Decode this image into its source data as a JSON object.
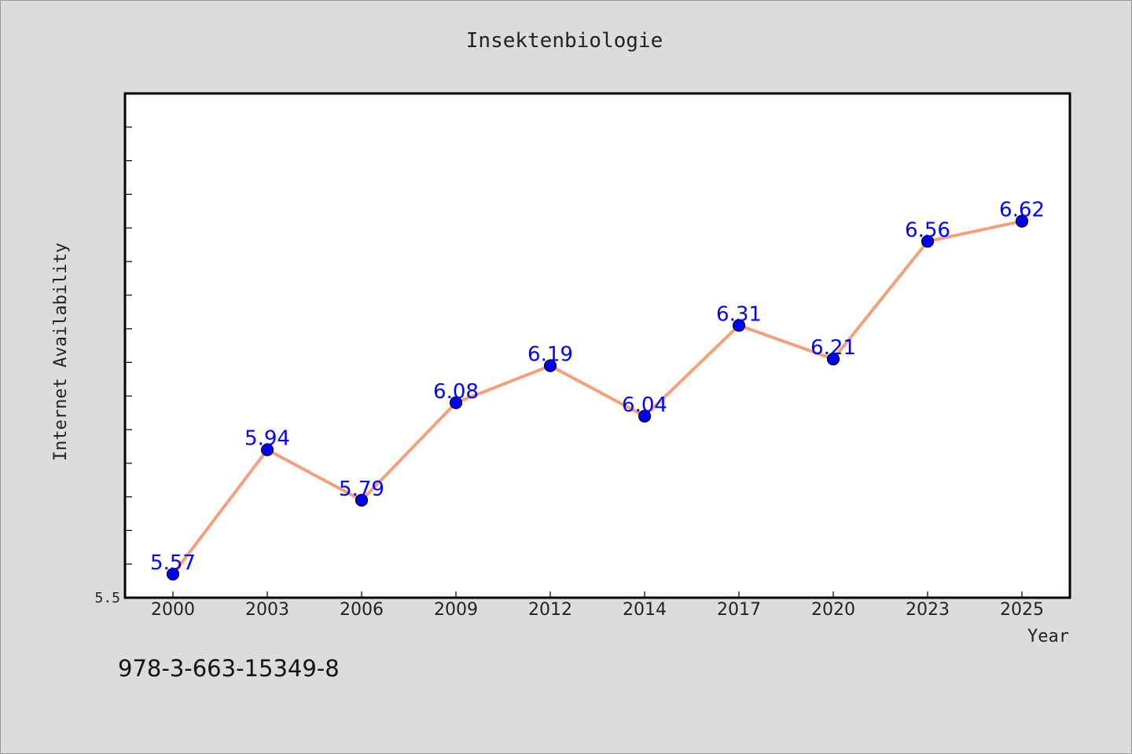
{
  "chart_data": {
    "type": "line",
    "title": "Insektenbiologie",
    "xlabel": "Year",
    "ylabel": "Internet Availability",
    "categories": [
      "2000",
      "2003",
      "2006",
      "2009",
      "2012",
      "2014",
      "2017",
      "2020",
      "2023",
      "2025"
    ],
    "series": [
      {
        "values": [
          5.57,
          5.94,
          5.79,
          6.08,
          6.19,
          6.04,
          6.31,
          6.21,
          6.56,
          6.62
        ]
      }
    ],
    "data_labels": [
      "5.57",
      "5.94",
      "5.79",
      "6.08",
      "6.19",
      "6.04",
      "6.31",
      "6.21",
      "6.56",
      "6.62"
    ],
    "ylim": [
      5.5,
      7.0
    ],
    "y_tick_labels": [
      "5.5"
    ],
    "grid": false,
    "legend": "none",
    "colors": {
      "line": "#f4a07e",
      "marker": "#0000ff",
      "label": "#0000ff",
      "plot_background": "#ffffff",
      "page_background": "#dcdcdc"
    }
  },
  "footer": {
    "isbn": "978-3-663-15349-8"
  }
}
